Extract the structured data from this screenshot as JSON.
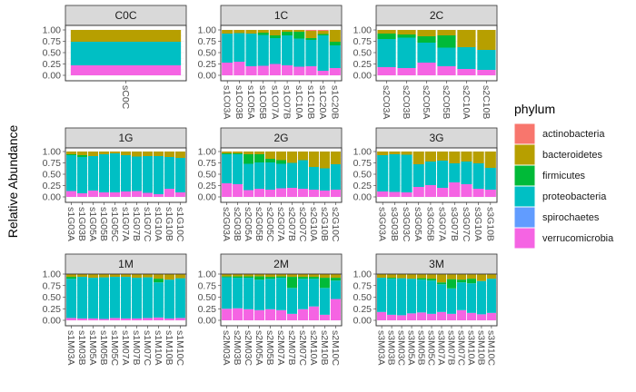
{
  "chart_data": {
    "type": "bar",
    "stacked": true,
    "facet_layout": "3x3",
    "ylabel": "Relative Abundance",
    "xlabel": "",
    "ylim": [
      0,
      1
    ],
    "y_ticks": [
      "0.00",
      "0.25",
      "0.50",
      "0.75",
      "1.00"
    ],
    "grid": true,
    "legend": {
      "title": "phylum",
      "position": "right",
      "entries": [
        "actinobacteria",
        "bacteroidetes",
        "firmicutes",
        "proteobacteria",
        "spirochaetes",
        "verrucomicrobia"
      ]
    },
    "colors": {
      "actinobacteria": "#F8766D",
      "bacteroidetes": "#B79F00",
      "firmicutes": "#00BA38",
      "proteobacteria": "#00BFC4",
      "spirochaetes": "#619CFF",
      "verrucomicrobia": "#F564E3"
    },
    "stack_order_top_to_bottom": [
      "actinobacteria",
      "bacteroidetes",
      "firmicutes",
      "proteobacteria",
      "spirochaetes",
      "verrucomicrobia"
    ],
    "panels": [
      {
        "title": "C0C",
        "samples": [
          {
            "id": "sC0C",
            "ver": 0.22,
            "pro": 0.52,
            "fir": 0.0,
            "bac": 0.26,
            "act": 0.0
          }
        ]
      },
      {
        "title": "1C",
        "samples": [
          {
            "id": "s1C03A",
            "ver": 0.28,
            "pro": 0.64,
            "fir": 0.0,
            "bac": 0.08,
            "act": 0.0
          },
          {
            "id": "s1C03B",
            "ver": 0.3,
            "pro": 0.63,
            "fir": 0.0,
            "bac": 0.07,
            "act": 0.0
          },
          {
            "id": "s1C05A",
            "ver": 0.2,
            "pro": 0.72,
            "fir": 0.0,
            "bac": 0.08,
            "act": 0.0
          },
          {
            "id": "s1C05B",
            "ver": 0.21,
            "pro": 0.68,
            "fir": 0.05,
            "bac": 0.06,
            "act": 0.0
          },
          {
            "id": "s1C07A",
            "ver": 0.25,
            "pro": 0.57,
            "fir": 0.06,
            "bac": 0.12,
            "act": 0.0
          },
          {
            "id": "s1C07B",
            "ver": 0.22,
            "pro": 0.66,
            "fir": 0.08,
            "bac": 0.04,
            "act": 0.0
          },
          {
            "id": "s1C10A",
            "ver": 0.19,
            "pro": 0.62,
            "fir": 0.15,
            "bac": 0.04,
            "act": 0.0
          },
          {
            "id": "s1C10B",
            "ver": 0.2,
            "pro": 0.58,
            "fir": 0.04,
            "bac": 0.16,
            "act": 0.02
          },
          {
            "id": "s1C20A",
            "ver": 0.1,
            "pro": 0.78,
            "fir": 0.03,
            "bac": 0.07,
            "act": 0.02
          },
          {
            "id": "s1C20B",
            "ver": 0.16,
            "pro": 0.5,
            "fir": 0.08,
            "bac": 0.26,
            "act": 0.0
          }
        ]
      },
      {
        "title": "2C",
        "samples": [
          {
            "id": "s2C03A",
            "ver": 0.18,
            "pro": 0.62,
            "fir": 0.12,
            "bac": 0.08,
            "act": 0.0
          },
          {
            "id": "s2C03B",
            "ver": 0.16,
            "pro": 0.67,
            "fir": 0.07,
            "bac": 0.1,
            "act": 0.0
          },
          {
            "id": "s2C05A",
            "ver": 0.28,
            "pro": 0.44,
            "fir": 0.14,
            "bac": 0.14,
            "act": 0.0
          },
          {
            "id": "s2C05B",
            "ver": 0.2,
            "pro": 0.41,
            "fir": 0.27,
            "bac": 0.12,
            "act": 0.0
          },
          {
            "id": "s2C10A",
            "ver": 0.14,
            "pro": 0.48,
            "fir": 0.0,
            "bac": 0.38,
            "act": 0.0
          },
          {
            "id": "s2C10B",
            "ver": 0.12,
            "pro": 0.44,
            "fir": 0.0,
            "bac": 0.44,
            "act": 0.0
          }
        ]
      },
      {
        "title": "1G",
        "samples": [
          {
            "id": "s1G03A",
            "ver": 0.13,
            "pro": 0.79,
            "fir": 0.02,
            "bac": 0.06,
            "act": 0.0
          },
          {
            "id": "s1G03B",
            "ver": 0.08,
            "pro": 0.8,
            "fir": 0.04,
            "bac": 0.08,
            "act": 0.0
          },
          {
            "id": "s1G05A",
            "ver": 0.14,
            "pro": 0.76,
            "fir": 0.0,
            "bac": 0.1,
            "act": 0.0
          },
          {
            "id": "s1G05B",
            "ver": 0.1,
            "pro": 0.84,
            "fir": 0.0,
            "bac": 0.06,
            "act": 0.0
          },
          {
            "id": "s1G05C",
            "ver": 0.1,
            "pro": 0.86,
            "fir": 0.0,
            "bac": 0.04,
            "act": 0.0
          },
          {
            "id": "s1G07A",
            "ver": 0.12,
            "pro": 0.8,
            "fir": 0.0,
            "bac": 0.08,
            "act": 0.0
          },
          {
            "id": "s1G07B",
            "ver": 0.13,
            "pro": 0.76,
            "fir": 0.0,
            "bac": 0.11,
            "act": 0.0
          },
          {
            "id": "s1G07C",
            "ver": 0.09,
            "pro": 0.81,
            "fir": 0.0,
            "bac": 0.1,
            "act": 0.0
          },
          {
            "id": "s1G10A",
            "ver": 0.06,
            "pro": 0.84,
            "fir": 0.0,
            "bac": 0.1,
            "act": 0.0
          },
          {
            "id": "s1G10B",
            "ver": 0.18,
            "pro": 0.7,
            "fir": 0.0,
            "bac": 0.12,
            "act": 0.0
          },
          {
            "id": "s1G10C",
            "ver": 0.1,
            "pro": 0.76,
            "fir": 0.0,
            "bac": 0.14,
            "act": 0.0
          }
        ]
      },
      {
        "title": "2G",
        "samples": [
          {
            "id": "s2G03A",
            "ver": 0.3,
            "pro": 0.64,
            "fir": 0.02,
            "bac": 0.04,
            "act": 0.0
          },
          {
            "id": "s2G03B",
            "ver": 0.28,
            "pro": 0.66,
            "fir": 0.02,
            "bac": 0.04,
            "act": 0.0
          },
          {
            "id": "s2G05A",
            "ver": 0.15,
            "pro": 0.58,
            "fir": 0.21,
            "bac": 0.06,
            "act": 0.0
          },
          {
            "id": "s2G05B",
            "ver": 0.18,
            "pro": 0.58,
            "fir": 0.18,
            "bac": 0.06,
            "act": 0.0
          },
          {
            "id": "s2G05C",
            "ver": 0.16,
            "pro": 0.6,
            "fir": 0.08,
            "bac": 0.16,
            "act": 0.0
          },
          {
            "id": "s2G07A",
            "ver": 0.19,
            "pro": 0.54,
            "fir": 0.08,
            "bac": 0.19,
            "act": 0.0
          },
          {
            "id": "s2G07B",
            "ver": 0.2,
            "pro": 0.55,
            "fir": 0.0,
            "bac": 0.25,
            "act": 0.0
          },
          {
            "id": "s2G07C",
            "ver": 0.18,
            "pro": 0.63,
            "fir": 0.0,
            "bac": 0.19,
            "act": 0.0
          },
          {
            "id": "s2G10A",
            "ver": 0.16,
            "pro": 0.5,
            "fir": 0.0,
            "bac": 0.34,
            "act": 0.0
          },
          {
            "id": "s2G10B",
            "ver": 0.14,
            "pro": 0.49,
            "fir": 0.0,
            "bac": 0.37,
            "act": 0.0
          },
          {
            "id": "s2G10C",
            "ver": 0.16,
            "pro": 0.56,
            "fir": 0.0,
            "bac": 0.28,
            "act": 0.0
          }
        ]
      },
      {
        "title": "3G",
        "samples": [
          {
            "id": "s3G03A",
            "ver": 0.12,
            "pro": 0.8,
            "fir": 0.0,
            "bac": 0.08,
            "act": 0.0
          },
          {
            "id": "s3G03B",
            "ver": 0.11,
            "pro": 0.83,
            "fir": 0.0,
            "bac": 0.06,
            "act": 0.0
          },
          {
            "id": "s3G03C",
            "ver": 0.1,
            "pro": 0.83,
            "fir": 0.0,
            "bac": 0.07,
            "act": 0.0
          },
          {
            "id": "s3G05A",
            "ver": 0.22,
            "pro": 0.5,
            "fir": 0.0,
            "bac": 0.28,
            "act": 0.0
          },
          {
            "id": "s3G05B",
            "ver": 0.26,
            "pro": 0.52,
            "fir": 0.0,
            "bac": 0.22,
            "act": 0.0
          },
          {
            "id": "s3G07A",
            "ver": 0.2,
            "pro": 0.6,
            "fir": 0.0,
            "bac": 0.2,
            "act": 0.0
          },
          {
            "id": "s3G07B",
            "ver": 0.32,
            "pro": 0.42,
            "fir": 0.0,
            "bac": 0.26,
            "act": 0.0
          },
          {
            "id": "s3G07C",
            "ver": 0.28,
            "pro": 0.5,
            "fir": 0.0,
            "bac": 0.22,
            "act": 0.0
          },
          {
            "id": "s3G10A",
            "ver": 0.18,
            "pro": 0.56,
            "fir": 0.0,
            "bac": 0.26,
            "act": 0.0
          },
          {
            "id": "s3G10B",
            "ver": 0.16,
            "pro": 0.48,
            "fir": 0.0,
            "bac": 0.36,
            "act": 0.0
          }
        ]
      },
      {
        "title": "1M",
        "samples": [
          {
            "id": "s1M03A",
            "ver": 0.05,
            "pro": 0.85,
            "fir": 0.04,
            "bac": 0.06,
            "act": 0.0
          },
          {
            "id": "s1M03B",
            "ver": 0.04,
            "pro": 0.9,
            "fir": 0.0,
            "bac": 0.06,
            "act": 0.0
          },
          {
            "id": "s1M05A",
            "ver": 0.04,
            "pro": 0.88,
            "fir": 0.0,
            "bac": 0.08,
            "act": 0.0
          },
          {
            "id": "s1M05B",
            "ver": 0.03,
            "pro": 0.9,
            "fir": 0.0,
            "bac": 0.07,
            "act": 0.0
          },
          {
            "id": "s1M05C",
            "ver": 0.05,
            "pro": 0.89,
            "fir": 0.0,
            "bac": 0.06,
            "act": 0.0
          },
          {
            "id": "s1M07A",
            "ver": 0.04,
            "pro": 0.9,
            "fir": 0.0,
            "bac": 0.06,
            "act": 0.0
          },
          {
            "id": "s1M07B",
            "ver": 0.04,
            "pro": 0.88,
            "fir": 0.0,
            "bac": 0.08,
            "act": 0.0
          },
          {
            "id": "s1M07C",
            "ver": 0.05,
            "pro": 0.88,
            "fir": 0.0,
            "bac": 0.07,
            "act": 0.0
          },
          {
            "id": "s1M10A",
            "ver": 0.06,
            "pro": 0.76,
            "fir": 0.08,
            "bac": 0.1,
            "act": 0.0
          },
          {
            "id": "s1M10B",
            "ver": 0.04,
            "pro": 0.84,
            "fir": 0.0,
            "bac": 0.12,
            "act": 0.0
          },
          {
            "id": "s1M10C",
            "ver": 0.05,
            "pro": 0.86,
            "fir": 0.0,
            "bac": 0.09,
            "act": 0.0
          }
        ]
      },
      {
        "title": "2M",
        "samples": [
          {
            "id": "s2M03A",
            "ver": 0.25,
            "pro": 0.68,
            "fir": 0.02,
            "bac": 0.05,
            "act": 0.0
          },
          {
            "id": "s2M03B",
            "ver": 0.26,
            "pro": 0.66,
            "fir": 0.03,
            "bac": 0.05,
            "act": 0.0
          },
          {
            "id": "s2M03C",
            "ver": 0.24,
            "pro": 0.68,
            "fir": 0.03,
            "bac": 0.05,
            "act": 0.0
          },
          {
            "id": "s2M05A",
            "ver": 0.22,
            "pro": 0.66,
            "fir": 0.07,
            "bac": 0.05,
            "act": 0.0
          },
          {
            "id": "s2M05B",
            "ver": 0.24,
            "pro": 0.66,
            "fir": 0.04,
            "bac": 0.06,
            "act": 0.0
          },
          {
            "id": "s2M07A",
            "ver": 0.22,
            "pro": 0.7,
            "fir": 0.03,
            "bac": 0.05,
            "act": 0.0
          },
          {
            "id": "s2M07B",
            "ver": 0.14,
            "pro": 0.56,
            "fir": 0.24,
            "bac": 0.06,
            "act": 0.0
          },
          {
            "id": "s2M07C",
            "ver": 0.24,
            "pro": 0.66,
            "fir": 0.04,
            "bac": 0.06,
            "act": 0.0
          },
          {
            "id": "s2M10A",
            "ver": 0.3,
            "pro": 0.6,
            "fir": 0.04,
            "bac": 0.06,
            "act": 0.0
          },
          {
            "id": "s2M10B",
            "ver": 0.12,
            "pro": 0.58,
            "fir": 0.22,
            "bac": 0.08,
            "act": 0.0
          },
          {
            "id": "s2M10C",
            "ver": 0.46,
            "pro": 0.4,
            "fir": 0.06,
            "bac": 0.08,
            "act": 0.0
          }
        ]
      },
      {
        "title": "3M",
        "samples": [
          {
            "id": "s3M03A",
            "ver": 0.18,
            "pro": 0.74,
            "fir": 0.0,
            "bac": 0.08,
            "act": 0.0
          },
          {
            "id": "s3M03B",
            "ver": 0.12,
            "pro": 0.78,
            "fir": 0.02,
            "bac": 0.08,
            "act": 0.0
          },
          {
            "id": "s3M03C",
            "ver": 0.11,
            "pro": 0.8,
            "fir": 0.0,
            "bac": 0.09,
            "act": 0.0
          },
          {
            "id": "s3M05A",
            "ver": 0.15,
            "pro": 0.75,
            "fir": 0.0,
            "bac": 0.1,
            "act": 0.0
          },
          {
            "id": "s3M05B",
            "ver": 0.17,
            "pro": 0.71,
            "fir": 0.03,
            "bac": 0.09,
            "act": 0.0
          },
          {
            "id": "s3M05C",
            "ver": 0.14,
            "pro": 0.72,
            "fir": 0.04,
            "bac": 0.1,
            "act": 0.0
          },
          {
            "id": "s3M07A",
            "ver": 0.18,
            "pro": 0.6,
            "fir": 0.04,
            "bac": 0.18,
            "act": 0.0
          },
          {
            "id": "s3M07B",
            "ver": 0.14,
            "pro": 0.55,
            "fir": 0.2,
            "bac": 0.11,
            "act": 0.0
          },
          {
            "id": "s3M07C",
            "ver": 0.22,
            "pro": 0.6,
            "fir": 0.06,
            "bac": 0.12,
            "act": 0.0
          },
          {
            "id": "s3M10A",
            "ver": 0.16,
            "pro": 0.64,
            "fir": 0.1,
            "bac": 0.1,
            "act": 0.0
          },
          {
            "id": "s3M10B",
            "ver": 0.13,
            "pro": 0.72,
            "fir": 0.0,
            "bac": 0.15,
            "act": 0.0
          },
          {
            "id": "s3M10C",
            "ver": 0.16,
            "pro": 0.74,
            "fir": 0.0,
            "bac": 0.1,
            "act": 0.0
          }
        ]
      }
    ]
  }
}
